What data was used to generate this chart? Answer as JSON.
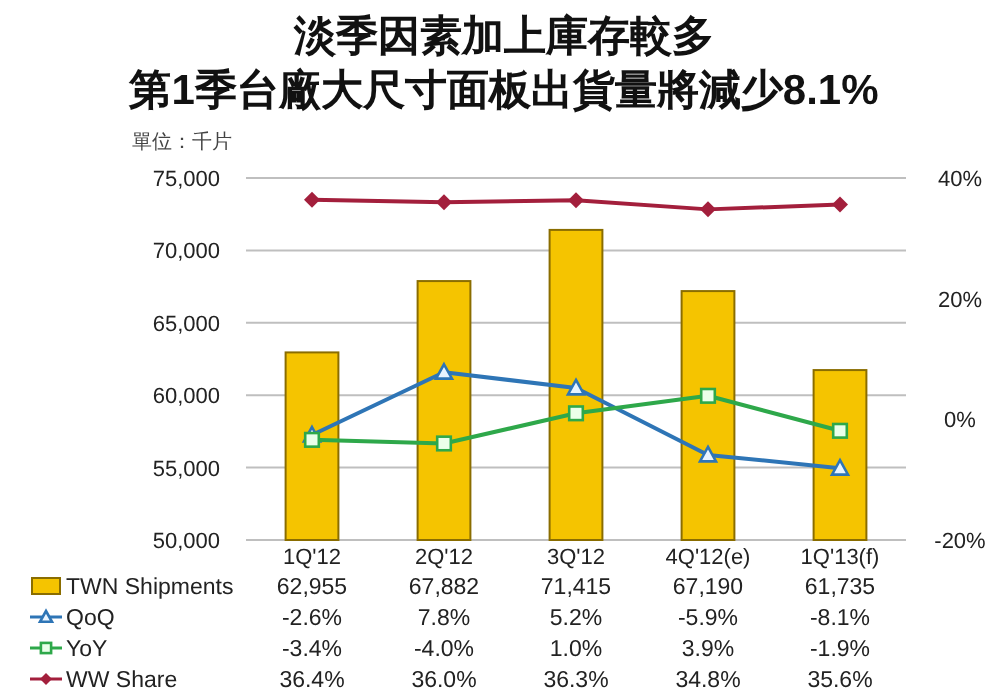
{
  "chart_data": {
    "type": "bar",
    "title": "淡季因素加上庫存較多",
    "subtitle": "第1季台廠大尺寸面板出貨量將減少8.1%",
    "annotations": [
      "單位：千片"
    ],
    "categories": [
      "1Q'12",
      "2Q'12",
      "3Q'12",
      "4Q'12(e)",
      "1Q'13(f)"
    ],
    "series": [
      {
        "name": "TWN Shipments",
        "color": "#f5c400",
        "values": [
          62955,
          67882,
          71415,
          67190,
          61735
        ],
        "value_labels": [
          "62,955",
          "67,882",
          "71,415",
          "67,190",
          "61,735"
        ]
      },
      {
        "name": "QoQ",
        "type": "line",
        "axis": "y2",
        "marker": "triangle",
        "color": "#2e75b6",
        "values": [
          -2.6,
          7.8,
          5.2,
          -5.9,
          -8.1
        ],
        "value_labels": [
          "-2.6%",
          "7.8%",
          "5.2%",
          "-5.9%",
          "-8.1%"
        ]
      },
      {
        "name": "YoY",
        "type": "line",
        "axis": "y2",
        "marker": "square",
        "color": "#2ea84a",
        "values": [
          -3.4,
          -4.0,
          1.0,
          3.9,
          -1.9
        ],
        "value_labels": [
          "-3.4%",
          "-4.0%",
          "1.0%",
          "3.9%",
          "-1.9%"
        ]
      },
      {
        "name": "WW Share",
        "type": "line",
        "axis": "y2",
        "marker": "diamond",
        "color": "#a31f3c",
        "values": [
          36.4,
          36.0,
          36.3,
          34.8,
          35.6
        ],
        "value_labels": [
          "36.4%",
          "36.0%",
          "36.3%",
          "34.8%",
          "35.6%"
        ]
      }
    ],
    "ylim": [
      50000,
      75000
    ],
    "yticks": [
      {
        "value": 50000,
        "label": "50,000"
      },
      {
        "value": 55000,
        "label": "55,000"
      },
      {
        "value": 60000,
        "label": "60,000"
      },
      {
        "value": 65000,
        "label": "65,000"
      },
      {
        "value": 70000,
        "label": "70,000"
      },
      {
        "value": 75000,
        "label": "75,000"
      }
    ],
    "y2lim": [
      -20,
      40
    ],
    "y2ticks": [
      {
        "value": -20,
        "label": "-20%"
      },
      {
        "value": 0,
        "label": "0%"
      },
      {
        "value": 20,
        "label": "20%"
      },
      {
        "value": 40,
        "label": "40%"
      }
    ],
    "grid": "y",
    "legend": "bottom"
  }
}
